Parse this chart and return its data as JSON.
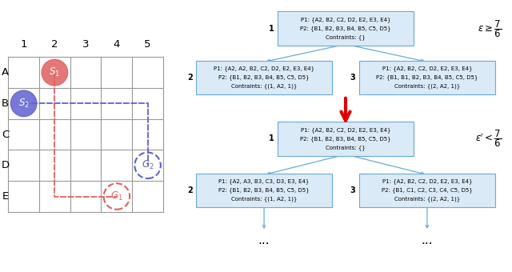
{
  "grid_rows": [
    "A",
    "B",
    "C",
    "D",
    "E"
  ],
  "grid_cols": [
    "1",
    "2",
    "3",
    "4",
    "5"
  ],
  "grid_color": "#999999",
  "s1_color": "#e06060",
  "s2_color": "#6060d0",
  "path1_color": "#e06060",
  "path2_color": "#6060d0",
  "box_fill": "#daeaf7",
  "box_edge": "#6aaad8",
  "arrow_color": "#dd0000",
  "line_color": "#6aaad8",
  "node1_top": {
    "id": "1",
    "line1": "P1: {A2, B2, C2, D2, E2, E3, E4}",
    "line2": "P2: {B1, B2, B3, B4, B5, C5, D5}",
    "line3": "Contraints: {}"
  },
  "node2_left": {
    "id": "2",
    "line1": "P1: {A2, A2, B2, C2, D2, E2, E3, E4}",
    "line2": "P2: {B1, B2, B3, B4, B5, C5, D5}",
    "line3": "Contraints: {(1, A2, 1)}"
  },
  "node3_right": {
    "id": "3",
    "line1": "P1: {A2, B2, C2, D2, E2, E3, E4}",
    "line2": "P2: {B1, B1, B2, B3, B4, B5, C5, D5}",
    "line3": "Contraints: {(2, A2, 1)}"
  },
  "node1_mid": {
    "id": "1",
    "line1": "P1: {A2, B2, C2, D2, E2, E3, E4}",
    "line2": "P2: {B1, B2, B3, B4, B5, C5, D5}",
    "line3": "Contraints: {}"
  },
  "node2_bot": {
    "id": "2",
    "line1": "P1: {A2, A3, B3, C3, D3, E3, E4}",
    "line2": "P2: {B1, B2, B3, B4, B5, C5, D5}",
    "line3": "Contraints: {(1, A2, 1)}"
  },
  "node3_bot": {
    "id": "3",
    "line1": "P1: {A2, B2, C2, D2, E2, E3, E4}",
    "line2": "P2: {B1, C1, C2, C3, C4, C5, D5}",
    "line3": "Contraints: {(2, A2, 1)}"
  }
}
